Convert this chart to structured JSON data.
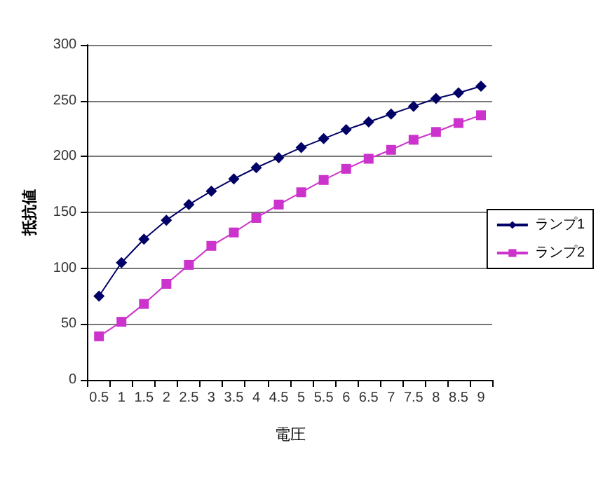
{
  "chart_data": {
    "type": "line",
    "xlabel": "電圧",
    "ylabel": "抵抗値",
    "categories": [
      "0.5",
      "1",
      "1.5",
      "2",
      "2.5",
      "3",
      "3.5",
      "4",
      "4.5",
      "5",
      "5.5",
      "6",
      "6.5",
      "7",
      "7.5",
      "8",
      "8.5",
      "9"
    ],
    "series": [
      {
        "name": "ランプ1",
        "color": "#000066",
        "marker": "diamond",
        "values": [
          75,
          105,
          126,
          143,
          157,
          169,
          180,
          190,
          199,
          208,
          216,
          224,
          231,
          238,
          245,
          252,
          257,
          263
        ]
      },
      {
        "name": "ランプ2",
        "color": "#cc33cc",
        "marker": "square",
        "values": [
          39,
          52,
          68,
          86,
          103,
          120,
          132,
          145,
          157,
          168,
          179,
          189,
          198,
          206,
          215,
          222,
          230,
          237
        ]
      }
    ],
    "ylim": [
      0,
      300
    ],
    "yticks": [
      0,
      50,
      100,
      150,
      200,
      250,
      300
    ],
    "grid": "y",
    "legend": "right",
    "line_style": "solid"
  }
}
